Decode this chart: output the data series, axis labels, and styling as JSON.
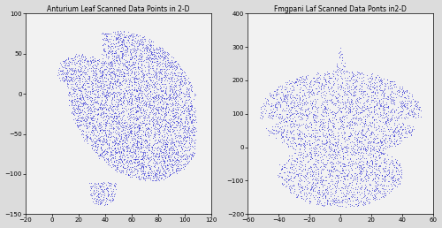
{
  "anthurium": {
    "title": "Anturium Leaf Scanned Data Points in 2-D",
    "n_points": 4688,
    "xlim": [
      -20,
      120
    ],
    "ylim": [
      -150,
      100
    ],
    "xticks": [
      -20,
      0,
      20,
      40,
      60,
      80,
      100,
      120
    ],
    "yticks": [
      -150,
      -100,
      -50,
      0,
      50,
      100
    ],
    "point_color": "#0000CC",
    "point_size": 0.8
  },
  "frangipani": {
    "title": "Fmgpani Laf Scanned Data Ponts in2-D",
    "n_points": 3388,
    "xlim": [
      -60,
      60
    ],
    "ylim": [
      -200,
      400
    ],
    "xticks": [
      -60,
      -40,
      -20,
      0,
      20,
      40,
      60
    ],
    "yticks": [
      -200,
      -100,
      0,
      100,
      200,
      300,
      400
    ],
    "point_color": "#0000CC",
    "point_size": 0.8
  },
  "bg_color": "#f2f2f2",
  "fig_color": "#dcdcdc"
}
